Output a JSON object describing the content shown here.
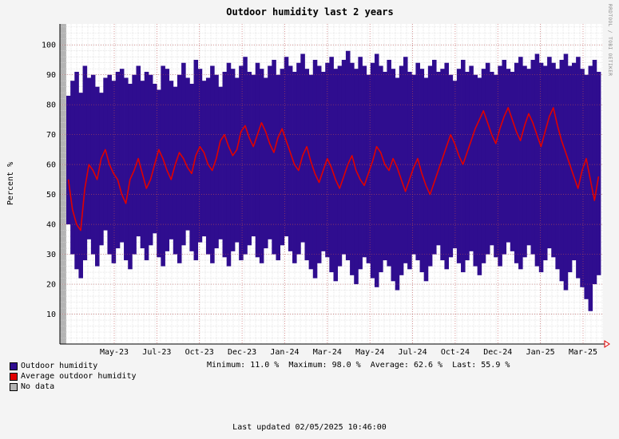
{
  "chart_data": {
    "type": "area",
    "title": "Outdoor humidity last 2 years",
    "ylabel": "Percent  %",
    "ylim": [
      0,
      107
    ],
    "yticks": [
      10,
      20,
      30,
      40,
      50,
      60,
      70,
      80,
      90,
      100
    ],
    "xticks": [
      "May-23",
      "Jul-23",
      "Oct-23",
      "Dec-23",
      "Jan-24",
      "Mar-24",
      "May-24",
      "Jul-24",
      "Oct-24",
      "Dec-24",
      "Jan-25",
      "Mar-25"
    ],
    "grid": true,
    "series": [
      {
        "name": "Outdoor humidity",
        "color": "#2f0d8f",
        "style": "min-max range per day",
        "max": [
          83,
          88,
          91,
          84,
          93,
          89,
          90,
          86,
          84,
          89,
          90,
          88,
          91,
          92,
          89,
          87,
          90,
          93,
          88,
          91,
          90,
          87,
          85,
          93,
          92,
          88,
          86,
          90,
          94,
          89,
          87,
          95,
          92,
          88,
          89,
          93,
          90,
          86,
          91,
          94,
          92,
          89,
          93,
          96,
          91,
          90,
          94,
          92,
          89,
          93,
          95,
          90,
          92,
          96,
          93,
          91,
          94,
          97,
          92,
          90,
          95,
          93,
          91,
          94,
          96,
          92,
          93,
          95,
          98,
          94,
          92,
          96,
          93,
          90,
          94,
          97,
          93,
          91,
          95,
          92,
          89,
          93,
          96,
          91,
          90,
          94,
          92,
          89,
          93,
          95,
          91,
          92,
          94,
          90,
          88,
          92,
          95,
          91,
          93,
          90,
          89,
          92,
          94,
          91,
          90,
          93,
          95,
          92,
          91,
          94,
          96,
          93,
          92,
          95,
          97,
          94,
          93,
          96,
          94,
          92,
          95,
          97,
          93,
          94,
          96,
          92,
          90,
          93,
          95,
          91
        ],
        "min": [
          40,
          30,
          25,
          22,
          28,
          35,
          30,
          26,
          33,
          38,
          30,
          27,
          32,
          34,
          28,
          25,
          30,
          36,
          32,
          28,
          33,
          37,
          29,
          26,
          31,
          35,
          30,
          27,
          33,
          38,
          31,
          28,
          34,
          36,
          30,
          27,
          32,
          35,
          29,
          26,
          31,
          34,
          28,
          30,
          33,
          36,
          29,
          27,
          32,
          35,
          30,
          28,
          33,
          36,
          31,
          27,
          30,
          34,
          28,
          25,
          22,
          27,
          31,
          29,
          24,
          21,
          26,
          30,
          28,
          23,
          20,
          25,
          29,
          27,
          22,
          19,
          24,
          28,
          26,
          21,
          18,
          23,
          27,
          25,
          30,
          28,
          24,
          21,
          26,
          30,
          33,
          28,
          25,
          29,
          32,
          27,
          24,
          28,
          31,
          26,
          23,
          27,
          30,
          33,
          29,
          26,
          30,
          34,
          31,
          27,
          25,
          29,
          33,
          30,
          26,
          24,
          28,
          32,
          29,
          25,
          21,
          18,
          24,
          28,
          22,
          19,
          15,
          11,
          20,
          23
        ]
      },
      {
        "name": "Average outdoor humidity",
        "color": "#e00000",
        "values": [
          55,
          45,
          40,
          38,
          52,
          60,
          58,
          55,
          62,
          65,
          60,
          57,
          55,
          50,
          47,
          55,
          58,
          62,
          57,
          52,
          55,
          60,
          65,
          62,
          58,
          55,
          60,
          64,
          62,
          59,
          57,
          63,
          66,
          64,
          60,
          58,
          62,
          68,
          70,
          66,
          63,
          65,
          71,
          73,
          69,
          66,
          70,
          74,
          71,
          67,
          64,
          69,
          72,
          68,
          64,
          60,
          58,
          63,
          66,
          61,
          57,
          54,
          58,
          62,
          59,
          55,
          52,
          56,
          60,
          63,
          58,
          55,
          53,
          57,
          61,
          66,
          64,
          60,
          58,
          62,
          59,
          55,
          51,
          55,
          59,
          62,
          57,
          53,
          50,
          54,
          58,
          62,
          66,
          70,
          67,
          63,
          60,
          64,
          68,
          72,
          75,
          78,
          74,
          70,
          67,
          72,
          76,
          79,
          75,
          71,
          68,
          73,
          77,
          74,
          70,
          66,
          71,
          76,
          79,
          73,
          68,
          64,
          60,
          56,
          52,
          58,
          62,
          55,
          48,
          56
        ]
      },
      {
        "name": "No data",
        "color": "#b4b4b4"
      }
    ],
    "stats": {
      "minimum": "11.0 %",
      "maximum": "98.0 %",
      "average": "62.6 %",
      "last": "55.9 %"
    }
  },
  "labels": {
    "minimum": "Minimum:",
    "maximum": "Maximum:",
    "average": "Average:",
    "last": "Last:"
  },
  "footer": {
    "updated": "Last updated 02/05/2025 10:46:00"
  },
  "watermark": "RRDTOOL / TOBI OETIKER"
}
